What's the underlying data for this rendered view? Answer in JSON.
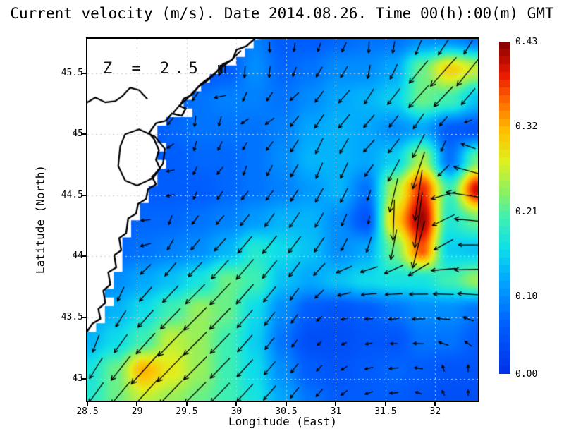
{
  "title": "Current velocity (m/s). Date 2014.08.26. Time 00(h):00(m) GMT",
  "annotation": "Z = 2.5 m",
  "axes": {
    "xlabel": "Longitude (East)",
    "ylabel": "Latitude (North)",
    "x_ticks": [
      28.5,
      29,
      29.5,
      30,
      30.5,
      31,
      31.5,
      32
    ],
    "y_ticks": [
      45.5,
      45,
      44.5,
      44,
      43.5,
      43
    ],
    "x_range": [
      28.5,
      32.43
    ],
    "y_range": [
      42.82,
      45.78
    ]
  },
  "colorbar": {
    "tick_labels": [
      "0.43",
      "0.32",
      "0.21",
      "0.10",
      "0.00"
    ],
    "min": 0.0,
    "max": 0.43,
    "segments": 43
  },
  "chart_data": {
    "type": "heatmap",
    "description": "Sea-surface current speed (m/s) with velocity vector arrows, north-western Black Sea; land masked white with coastline contours",
    "grid_lons": [
      28.5,
      28.78,
      29.06,
      29.34,
      29.62,
      29.9,
      30.18,
      30.46,
      30.75,
      31.03,
      31.31,
      31.59,
      31.87,
      32.15,
      32.43
    ],
    "grid_lats": [
      45.78,
      45.53,
      45.29,
      45.04,
      44.8,
      44.55,
      44.31,
      44.06,
      43.82,
      43.58,
      43.33,
      43.09,
      42.82
    ],
    "speed": [
      [
        0.05,
        0.05,
        0.05,
        0.05,
        0.05,
        0.06,
        0.09,
        0.06,
        0.06,
        0.07,
        0.08,
        0.08,
        0.1,
        0.1,
        0.08
      ],
      [
        0.05,
        0.05,
        0.05,
        0.05,
        0.05,
        0.06,
        0.1,
        0.07,
        0.08,
        0.1,
        0.1,
        0.12,
        0.22,
        0.3,
        0.26
      ],
      [
        0.05,
        0.05,
        0.05,
        0.06,
        0.08,
        0.09,
        0.09,
        0.08,
        0.1,
        0.12,
        0.13,
        0.15,
        0.22,
        0.2,
        0.14
      ],
      [
        0.05,
        0.05,
        0.05,
        0.07,
        0.08,
        0.08,
        0.08,
        0.09,
        0.12,
        0.13,
        0.12,
        0.1,
        0.12,
        0.06,
        0.05
      ],
      [
        0.05,
        0.06,
        0.06,
        0.06,
        0.07,
        0.07,
        0.08,
        0.1,
        0.13,
        0.13,
        0.12,
        0.15,
        0.25,
        0.08,
        0.22
      ],
      [
        0.05,
        0.05,
        0.06,
        0.06,
        0.06,
        0.07,
        0.08,
        0.09,
        0.11,
        0.13,
        0.08,
        0.25,
        0.38,
        0.2,
        0.4
      ],
      [
        0.05,
        0.06,
        0.07,
        0.07,
        0.08,
        0.09,
        0.11,
        0.13,
        0.13,
        0.1,
        0.05,
        0.3,
        0.42,
        0.18,
        0.22
      ],
      [
        0.06,
        0.07,
        0.08,
        0.09,
        0.1,
        0.13,
        0.18,
        0.16,
        0.14,
        0.1,
        0.12,
        0.22,
        0.36,
        0.15,
        0.14
      ],
      [
        0.08,
        0.1,
        0.12,
        0.14,
        0.17,
        0.22,
        0.2,
        0.14,
        0.12,
        0.14,
        0.16,
        0.17,
        0.17,
        0.2,
        0.24
      ],
      [
        0.1,
        0.13,
        0.16,
        0.2,
        0.24,
        0.22,
        0.16,
        0.1,
        0.06,
        0.05,
        0.06,
        0.08,
        0.1,
        0.1,
        0.08
      ],
      [
        0.13,
        0.16,
        0.2,
        0.26,
        0.24,
        0.2,
        0.15,
        0.08,
        0.04,
        0.04,
        0.05,
        0.05,
        0.08,
        0.08,
        0.06
      ],
      [
        0.17,
        0.22,
        0.32,
        0.28,
        0.24,
        0.2,
        0.16,
        0.1,
        0.06,
        0.05,
        0.06,
        0.07,
        0.06,
        0.05,
        0.05
      ],
      [
        0.18,
        0.22,
        0.26,
        0.24,
        0.22,
        0.2,
        0.17,
        0.12,
        0.08,
        0.06,
        0.06,
        0.06,
        0.05,
        0.04,
        0.04
      ]
    ],
    "direction_deg_ccw_from_east": [
      [
        270,
        270,
        270,
        270,
        270,
        255,
        275,
        270,
        255,
        245,
        270,
        265,
        255,
        240,
        245
      ],
      [
        270,
        270,
        270,
        270,
        260,
        255,
        270,
        260,
        240,
        235,
        260,
        245,
        230,
        228,
        232
      ],
      [
        250,
        250,
        210,
        210,
        235,
        185,
        265,
        210,
        235,
        228,
        238,
        232,
        228,
        226,
        232
      ],
      [
        250,
        250,
        255,
        235,
        270,
        265,
        190,
        228,
        238,
        232,
        228,
        232,
        238,
        232,
        160
      ],
      [
        255,
        255,
        270,
        195,
        245,
        225,
        270,
        232,
        250,
        248,
        228,
        232,
        245,
        255,
        150
      ],
      [
        265,
        265,
        270,
        185,
        250,
        235,
        230,
        235,
        240,
        242,
        250,
        255,
        262,
        180,
        170
      ],
      [
        270,
        265,
        185,
        250,
        232,
        228,
        232,
        235,
        238,
        245,
        260,
        268,
        262,
        190,
        170
      ],
      [
        270,
        270,
        195,
        240,
        230,
        228,
        230,
        232,
        235,
        240,
        252,
        258,
        255,
        195,
        175
      ],
      [
        268,
        255,
        230,
        228,
        226,
        228,
        230,
        232,
        235,
        195,
        185,
        182,
        180,
        178,
        182
      ],
      [
        262,
        240,
        228,
        226,
        225,
        226,
        230,
        235,
        228,
        190,
        182,
        185,
        182,
        178,
        155
      ],
      [
        255,
        235,
        228,
        226,
        225,
        226,
        230,
        235,
        225,
        210,
        190,
        182,
        178,
        160,
        140
      ],
      [
        240,
        232,
        228,
        226,
        225,
        226,
        228,
        232,
        228,
        215,
        195,
        185,
        170,
        100,
        85
      ],
      [
        235,
        230,
        228,
        226,
        225,
        226,
        228,
        230,
        232,
        220,
        200,
        185,
        160,
        110,
        85
      ]
    ],
    "colormap_stops": [
      [
        0.0,
        "#0030E8"
      ],
      [
        0.15,
        "#0060FF"
      ],
      [
        0.28,
        "#00A8FF"
      ],
      [
        0.38,
        "#10E0E8"
      ],
      [
        0.47,
        "#40F0B0"
      ],
      [
        0.55,
        "#90F060"
      ],
      [
        0.64,
        "#E0F020"
      ],
      [
        0.73,
        "#FFC000"
      ],
      [
        0.82,
        "#FF6800"
      ],
      [
        0.9,
        "#E81800"
      ],
      [
        1.0,
        "#800000"
      ]
    ],
    "coastline_main": [
      [
        30.18,
        45.78
      ],
      [
        30.1,
        45.72
      ],
      [
        30.0,
        45.69
      ],
      [
        29.96,
        45.61
      ],
      [
        29.86,
        45.57
      ],
      [
        29.79,
        45.5
      ],
      [
        29.71,
        45.44
      ],
      [
        29.62,
        45.39
      ],
      [
        29.55,
        45.32
      ],
      [
        29.47,
        45.29
      ],
      [
        29.43,
        45.23
      ],
      [
        29.49,
        45.21
      ],
      [
        29.45,
        45.15
      ],
      [
        29.35,
        45.17
      ],
      [
        29.29,
        45.11
      ],
      [
        29.19,
        45.09
      ],
      [
        29.12,
        45.01
      ],
      [
        29.17,
        44.96
      ],
      [
        29.22,
        44.87
      ],
      [
        29.19,
        44.79
      ],
      [
        29.23,
        44.72
      ],
      [
        29.15,
        44.65
      ],
      [
        29.19,
        44.59
      ],
      [
        29.11,
        44.55
      ],
      [
        29.09,
        44.47
      ],
      [
        29.01,
        44.43
      ],
      [
        28.99,
        44.35
      ],
      [
        28.91,
        44.31
      ],
      [
        28.89,
        44.19
      ],
      [
        28.82,
        44.15
      ],
      [
        28.84,
        44.05
      ],
      [
        28.77,
        44.01
      ],
      [
        28.79,
        43.91
      ],
      [
        28.71,
        43.87
      ],
      [
        28.73,
        43.77
      ],
      [
        28.66,
        43.72
      ],
      [
        28.68,
        43.62
      ],
      [
        28.61,
        43.57
      ],
      [
        28.63,
        43.49
      ],
      [
        28.55,
        43.45
      ],
      [
        28.5,
        43.39
      ]
    ],
    "lake_loop": [
      [
        28.88,
        45.0
      ],
      [
        29.02,
        45.04
      ],
      [
        29.18,
        44.98
      ],
      [
        29.28,
        44.88
      ],
      [
        29.26,
        44.76
      ],
      [
        29.16,
        44.64
      ],
      [
        29.0,
        44.58
      ],
      [
        28.88,
        44.62
      ],
      [
        28.81,
        44.74
      ],
      [
        28.83,
        44.9
      ]
    ],
    "north_lagoon_line": [
      [
        28.5,
        45.26
      ],
      [
        28.58,
        45.3
      ],
      [
        28.68,
        45.26
      ],
      [
        28.78,
        45.27
      ],
      [
        28.85,
        45.31
      ],
      [
        28.93,
        45.38
      ],
      [
        29.02,
        45.36
      ],
      [
        29.1,
        45.29
      ]
    ],
    "delta_inner_line": [
      [
        30.04,
        45.68
      ],
      [
        29.94,
        45.6
      ],
      [
        29.84,
        45.54
      ],
      [
        29.74,
        45.47
      ],
      [
        29.64,
        45.41
      ],
      [
        29.56,
        45.34
      ],
      [
        29.49,
        45.28
      ],
      [
        29.42,
        45.23
      ],
      [
        29.37,
        45.18
      ]
    ],
    "land_color": "#ffffff",
    "coast_color": "#000000",
    "grid_color": "#cdcdcd",
    "arrow_color": "#000000"
  }
}
